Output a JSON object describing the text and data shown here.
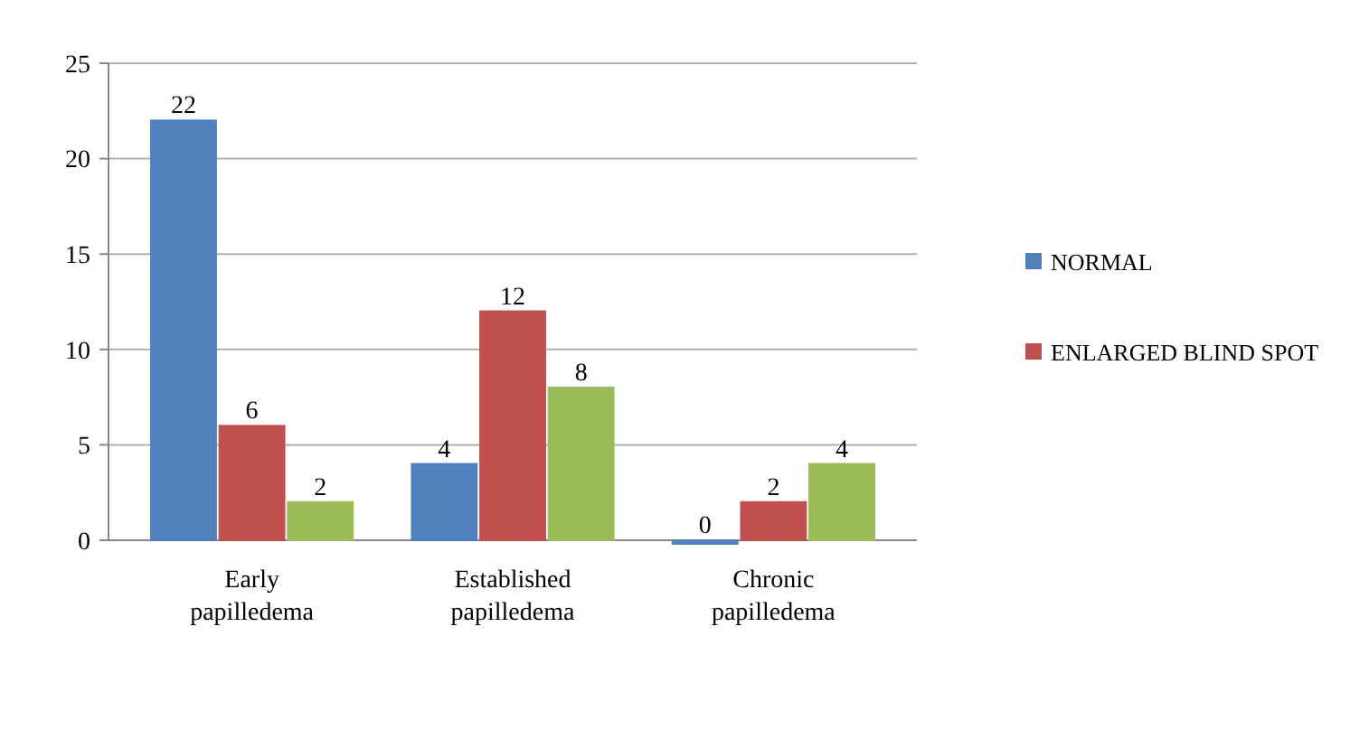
{
  "chart_data": {
    "type": "bar",
    "categories": [
      "Early papilledema",
      "Established papilledema",
      "Chronic papilledema"
    ],
    "series": [
      {
        "name": "NORMAL",
        "color": "#4f81bd",
        "values": [
          22,
          4,
          0
        ]
      },
      {
        "name": "ENLARGED BLIND SPOT",
        "color": "#c0504d",
        "values": [
          6,
          12,
          2
        ]
      },
      {
        "color": "#9bbb59",
        "values": [
          2,
          8,
          4
        ]
      }
    ],
    "ylim": [
      0,
      25
    ],
    "yticks": [
      0,
      5,
      10,
      15,
      20,
      25
    ],
    "grid": "y",
    "legend": "right",
    "data_labels": true
  }
}
